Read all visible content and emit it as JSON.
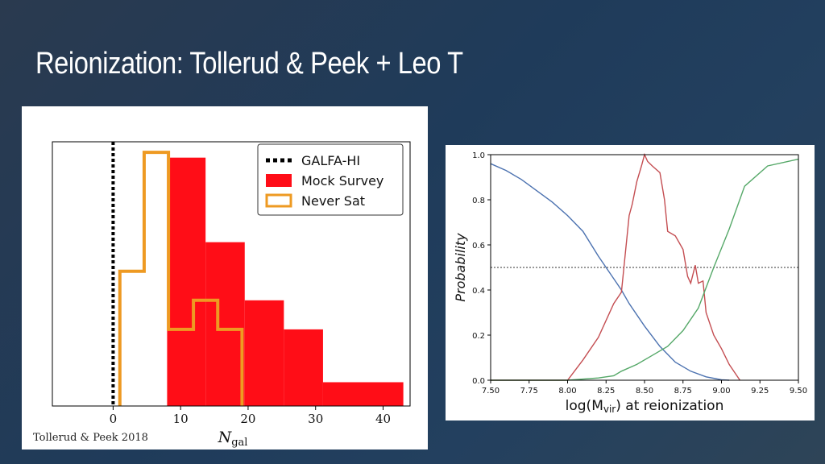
{
  "slide": {
    "title": "Reionization: Tollerud & Peek + Leo T"
  },
  "left_panel": {
    "caption": "Tollerud & Peek 2018"
  },
  "chart_data": [
    {
      "type": "bar",
      "xlabel": "N",
      "xlabel_subscript": "gal",
      "ylabel": "",
      "xlim": [
        -9,
        44
      ],
      "ylim": [
        0,
        1.0
      ],
      "xticks": [
        "0",
        "10",
        "20",
        "30",
        "40"
      ],
      "legend_position": "top-right",
      "series": [
        {
          "name": "GALFA-HI",
          "style": "dotted-vertical-line",
          "color": "#000000",
          "x": 0
        },
        {
          "name": "Mock Survey",
          "style": "filled-step",
          "color": "#ff0d17",
          "bins": [
            {
              "x0": 8,
              "x1": 13.7,
              "value": 0.94
            },
            {
              "x0": 13.7,
              "x1": 19.5,
              "value": 0.62
            },
            {
              "x0": 19.5,
              "x1": 25.3,
              "value": 0.4
            },
            {
              "x0": 25.3,
              "x1": 31.1,
              "value": 0.29
            },
            {
              "x0": 31.1,
              "x1": 43,
              "value": 0.09
            }
          ]
        },
        {
          "name": "Never Sat",
          "style": "outline-step",
          "color": "#ee9a22",
          "bins": [
            {
              "x0": 1,
              "x1": 4.6,
              "value": 0.51
            },
            {
              "x0": 4.6,
              "x1": 8.2,
              "value": 0.96
            },
            {
              "x0": 8.2,
              "x1": 11.9,
              "value": 0.29
            },
            {
              "x0": 11.9,
              "x1": 15.5,
              "value": 0.4
            },
            {
              "x0": 15.5,
              "x1": 19.1,
              "value": 0.29
            }
          ]
        }
      ]
    },
    {
      "type": "line",
      "xlabel": "log(M",
      "xlabel_subscript": "vir",
      "xlabel_suffix": ") at reionization",
      "ylabel": "Probability",
      "xlim": [
        7.5,
        9.5
      ],
      "ylim": [
        0,
        1.0
      ],
      "xticks": [
        "7.50",
        "7.75",
        "8.00",
        "8.25",
        "8.50",
        "8.75",
        "9.00",
        "9.25",
        "9.50"
      ],
      "yticks": [
        "0.0",
        "0.2",
        "0.4",
        "0.6",
        "0.8",
        "1.0"
      ],
      "hline": 0.5,
      "series": [
        {
          "name": "",
          "color": "#4c72b0",
          "x": [
            7.5,
            7.6,
            7.7,
            7.8,
            7.9,
            8.0,
            8.1,
            8.2,
            8.3,
            8.35,
            8.4,
            8.5,
            8.6,
            8.7,
            8.8,
            8.9,
            9.0,
            9.05
          ],
          "y": [
            0.96,
            0.93,
            0.89,
            0.84,
            0.79,
            0.73,
            0.66,
            0.55,
            0.45,
            0.4,
            0.34,
            0.24,
            0.15,
            0.08,
            0.04,
            0.015,
            0.002,
            0.0
          ]
        },
        {
          "name": "",
          "color": "#c44e52",
          "x": [
            7.5,
            8.0,
            8.1,
            8.2,
            8.3,
            8.35,
            8.4,
            8.42,
            8.45,
            8.48,
            8.5,
            8.52,
            8.55,
            8.6,
            8.63,
            8.65,
            8.7,
            8.75,
            8.78,
            8.8,
            8.83,
            8.85,
            8.88,
            8.9,
            8.95,
            9.0,
            9.05,
            9.12
          ],
          "y": [
            0.0,
            0.0,
            0.09,
            0.19,
            0.34,
            0.39,
            0.73,
            0.78,
            0.88,
            0.95,
            1.0,
            0.97,
            0.95,
            0.92,
            0.8,
            0.66,
            0.64,
            0.58,
            0.46,
            0.43,
            0.51,
            0.43,
            0.44,
            0.3,
            0.2,
            0.14,
            0.07,
            0.0
          ]
        },
        {
          "name": "",
          "color": "#55a868",
          "x": [
            7.5,
            8.0,
            8.2,
            8.3,
            8.35,
            8.45,
            8.55,
            8.65,
            8.75,
            8.85,
            8.95,
            9.05,
            9.15,
            9.3,
            9.5
          ],
          "y": [
            0.0,
            0.0,
            0.01,
            0.02,
            0.04,
            0.07,
            0.11,
            0.15,
            0.22,
            0.32,
            0.5,
            0.67,
            0.86,
            0.95,
            0.98
          ]
        }
      ]
    }
  ]
}
